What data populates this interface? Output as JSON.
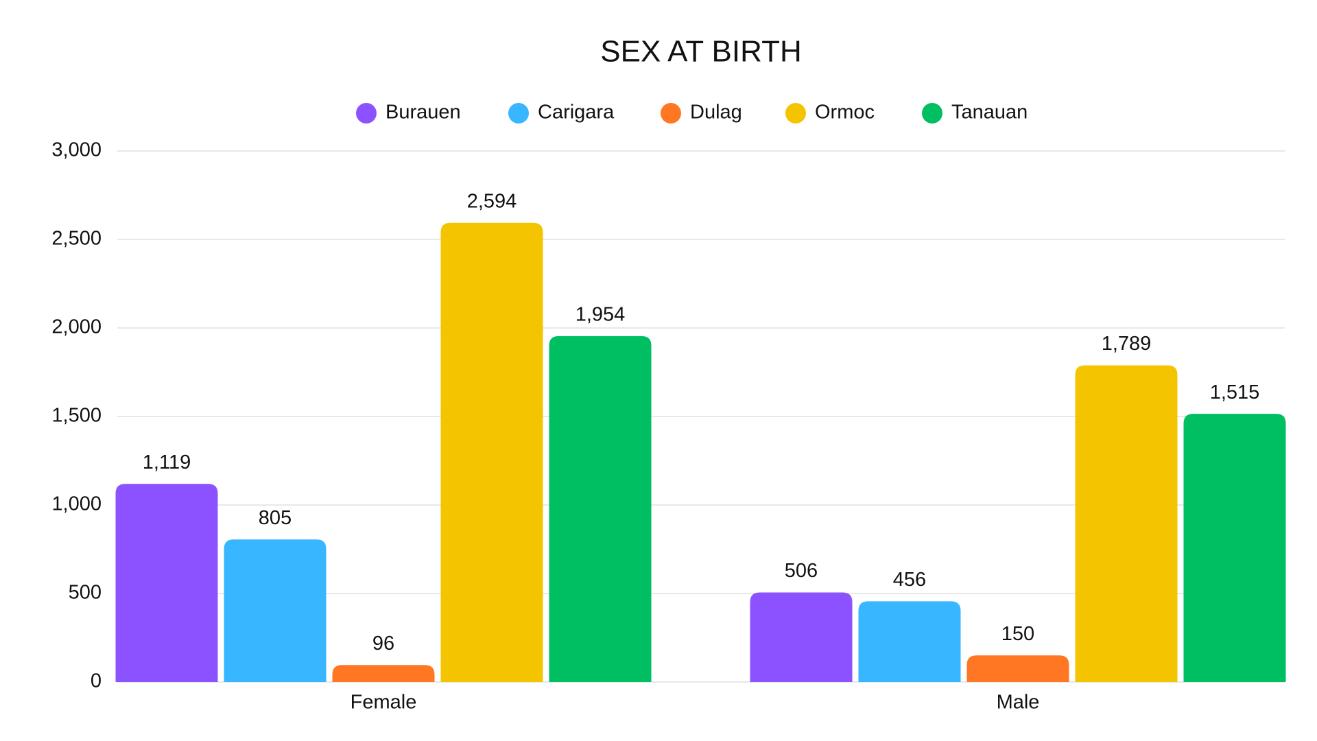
{
  "chart_data": {
    "type": "bar",
    "title": "SEX AT BIRTH",
    "categories": [
      "Female",
      "Male"
    ],
    "series": [
      {
        "name": "Burauen",
        "color": "#8c52ff",
        "values": [
          1119,
          506
        ],
        "value_labels": [
          "1,119",
          "506"
        ]
      },
      {
        "name": "Carigara",
        "color": "#38b6ff",
        "values": [
          805,
          456
        ],
        "value_labels": [
          "805",
          "456"
        ]
      },
      {
        "name": "Dulag",
        "color": "#ff7722",
        "values": [
          96,
          150
        ],
        "value_labels": [
          "96",
          "150"
        ]
      },
      {
        "name": "Ormoc",
        "color": "#f5c400",
        "values": [
          2594,
          1789
        ],
        "value_labels": [
          "2,594",
          "1,789"
        ]
      },
      {
        "name": "Tanauan",
        "color": "#00bf63",
        "values": [
          1954,
          1515
        ],
        "value_labels": [
          "1,954",
          "1,515"
        ]
      }
    ],
    "ylim": [
      0,
      3000
    ],
    "yticks": [
      0,
      500,
      {
        "value": 1000,
        "label": "1,000"
      },
      {
        "value": 1500,
        "label": "1,500"
      },
      {
        "value": 2000,
        "label": "2,000"
      },
      {
        "value": 2500,
        "label": "2,500"
      },
      {
        "value": 3000,
        "label": "3,000"
      }
    ],
    "grid": true,
    "legend": "top"
  }
}
